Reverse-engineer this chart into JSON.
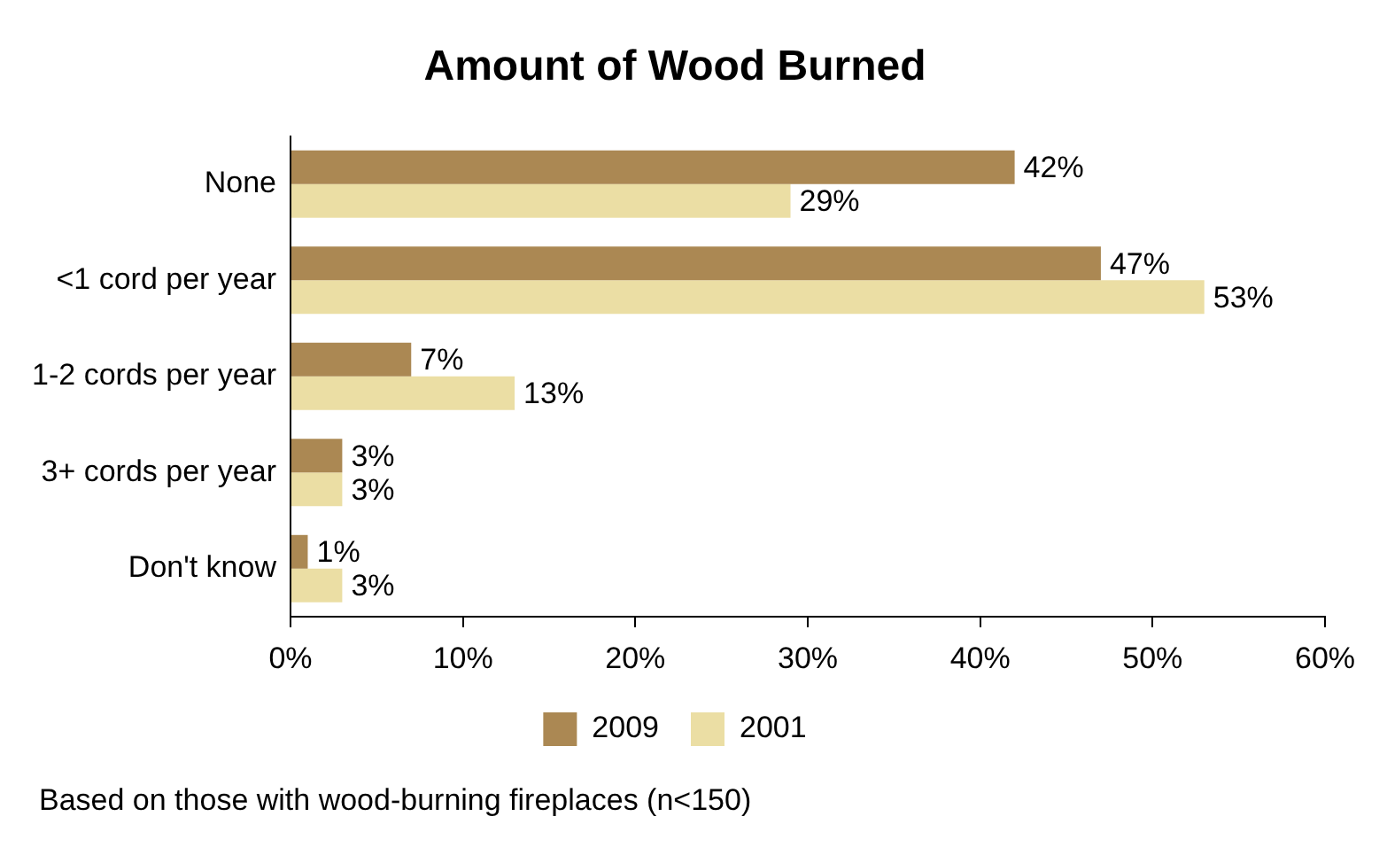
{
  "chart_data": {
    "type": "bar",
    "orientation": "horizontal",
    "title": "Amount of Wood Burned",
    "categories": [
      "None",
      "<1 cord per year",
      "1-2 cords per year",
      "3+ cords per year",
      "Don't know"
    ],
    "series": [
      {
        "name": "2009",
        "color": "#ab8853",
        "values": [
          42,
          47,
          7,
          3,
          1
        ],
        "value_labels": [
          "42%",
          "47%",
          "7%",
          "3%",
          "1%"
        ]
      },
      {
        "name": "2001",
        "color": "#ebdea4",
        "values": [
          29,
          53,
          13,
          3,
          3
        ],
        "value_labels": [
          "29%",
          "53%",
          "13%",
          "3%",
          "3%"
        ]
      }
    ],
    "xlim": [
      0,
      60
    ],
    "xticks": [
      {
        "value": 0,
        "label": "0%"
      },
      {
        "value": 10,
        "label": "10%"
      },
      {
        "value": 20,
        "label": "20%"
      },
      {
        "value": 30,
        "label": "30%"
      },
      {
        "value": 40,
        "label": "40%"
      },
      {
        "value": 50,
        "label": "50%"
      },
      {
        "value": 60,
        "label": "60%"
      }
    ],
    "legend": "bottom",
    "annotations": [
      "Based on those with wood-burning fireplaces (n<150)"
    ]
  }
}
